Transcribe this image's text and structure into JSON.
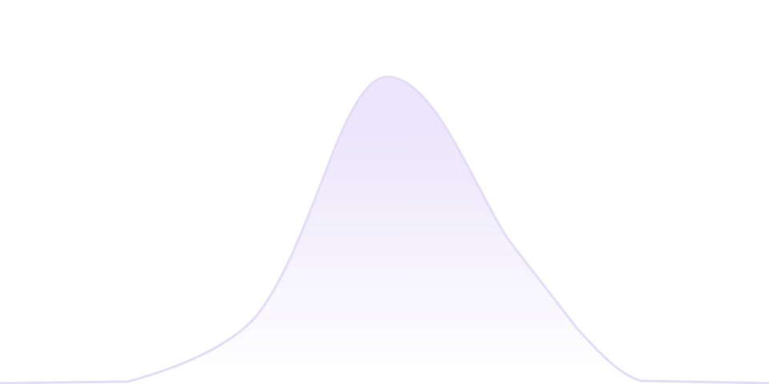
{
  "graphic": {
    "type": "decorative-area-curve",
    "colors": {
      "background": "#ffffff",
      "stroke": "#e3ddf8",
      "fill_top": "#ebe6fb",
      "fill_bottom": "#ffffff"
    }
  }
}
